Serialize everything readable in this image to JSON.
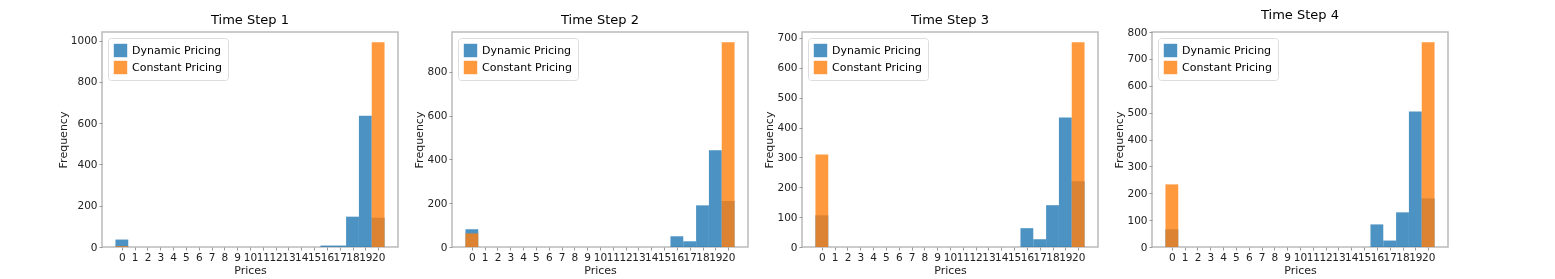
{
  "chart_data": [
    {
      "type": "histogram",
      "title": "Time Step 1",
      "xlabel": "Prices",
      "ylabel": "Frequency",
      "legend": "top left",
      "bins": [
        -0.5,
        0.5,
        1.5,
        2.5,
        3.5,
        4.5,
        5.5,
        6.5,
        7.5,
        8.5,
        9.5,
        10.5,
        11.5,
        12.5,
        13.5,
        14.5,
        15.5,
        16.5,
        17.5,
        18.5,
        19.5,
        20.5
      ],
      "xlim": [
        -1.55,
        21.55
      ],
      "xticks": [
        0,
        1,
        2,
        3,
        4,
        5,
        6,
        7,
        8,
        9,
        10,
        11,
        12,
        13,
        14,
        15,
        16,
        17,
        18,
        19,
        20
      ],
      "ylim": [
        0,
        1042
      ],
      "yticks": [
        0,
        200,
        400,
        600,
        800,
        1000
      ],
      "series": [
        {
          "name": "Dynamic Pricing",
          "color": "#1f77b4",
          "values": [
            36,
            0,
            0,
            0,
            0,
            0,
            0,
            0,
            0,
            0,
            0,
            0,
            0,
            0,
            0,
            0,
            7,
            7,
            147,
            636,
            142
          ]
        },
        {
          "name": "Constant Pricing",
          "color": "#ff7f0e",
          "values": [
            4,
            0,
            0,
            0,
            0,
            0,
            0,
            0,
            0,
            0,
            0,
            0,
            0,
            0,
            0,
            0,
            0,
            0,
            0,
            0,
            992
          ]
        }
      ]
    },
    {
      "type": "histogram",
      "title": "Time Step 2",
      "xlabel": "Prices",
      "ylabel": "Frequency",
      "legend": "top left",
      "bins": [
        -0.5,
        0.5,
        1.5,
        2.5,
        3.5,
        4.5,
        5.5,
        6.5,
        7.5,
        8.5,
        9.5,
        10.5,
        11.5,
        12.5,
        13.5,
        14.5,
        15.5,
        16.5,
        17.5,
        18.5,
        19.5,
        20.5
      ],
      "xlim": [
        -1.55,
        21.55
      ],
      "xticks": [
        0,
        1,
        2,
        3,
        4,
        5,
        6,
        7,
        8,
        9,
        10,
        11,
        12,
        13,
        14,
        15,
        16,
        17,
        18,
        19,
        20
      ],
      "ylim": [
        0,
        981
      ],
      "yticks": [
        0,
        200,
        400,
        600,
        800
      ],
      "series": [
        {
          "name": "Dynamic Pricing",
          "color": "#1f77b4",
          "values": [
            81,
            0,
            0,
            0,
            0,
            0,
            0,
            0,
            0,
            0,
            0,
            0,
            0,
            0,
            0,
            0,
            49,
            26,
            190,
            441,
            210
          ]
        },
        {
          "name": "Constant Pricing",
          "color": "#ff7f0e",
          "values": [
            62,
            0,
            0,
            0,
            0,
            0,
            0,
            0,
            0,
            0,
            0,
            0,
            0,
            0,
            0,
            0,
            0,
            0,
            0,
            0,
            934
          ]
        }
      ]
    },
    {
      "type": "histogram",
      "title": "Time Step 3",
      "xlabel": "Prices",
      "ylabel": "Frequency",
      "legend": "top left",
      "bins": [
        -0.5,
        0.5,
        1.5,
        2.5,
        3.5,
        4.5,
        5.5,
        6.5,
        7.5,
        8.5,
        9.5,
        10.5,
        11.5,
        12.5,
        13.5,
        14.5,
        15.5,
        16.5,
        17.5,
        18.5,
        19.5,
        20.5
      ],
      "xlim": [
        -1.55,
        21.55
      ],
      "xticks": [
        0,
        1,
        2,
        3,
        4,
        5,
        6,
        7,
        8,
        9,
        10,
        11,
        12,
        13,
        14,
        15,
        16,
        17,
        18,
        19,
        20
      ],
      "ylim": [
        0,
        720
      ],
      "yticks": [
        0,
        100,
        200,
        300,
        400,
        500,
        600,
        700
      ],
      "series": [
        {
          "name": "Dynamic Pricing",
          "color": "#1f77b4",
          "values": [
            106,
            0,
            0,
            0,
            0,
            0,
            0,
            0,
            0,
            0,
            0,
            0,
            0,
            0,
            0,
            0,
            63,
            26,
            140,
            434,
            220
          ]
        },
        {
          "name": "Constant Pricing",
          "color": "#ff7f0e",
          "values": [
            310,
            0,
            0,
            0,
            0,
            0,
            0,
            0,
            0,
            0,
            0,
            0,
            0,
            0,
            0,
            0,
            0,
            0,
            0,
            0,
            686
          ]
        }
      ]
    },
    {
      "type": "histogram",
      "title": "Time Step 4",
      "xlabel": "Prices",
      "ylabel": "Frequency",
      "legend": "top left",
      "bins": [
        -0.5,
        0.5,
        1.5,
        2.5,
        3.5,
        4.5,
        5.5,
        6.5,
        7.5,
        8.5,
        9.5,
        10.5,
        11.5,
        12.5,
        13.5,
        14.5,
        15.5,
        16.5,
        17.5,
        18.5,
        19.5,
        20.5
      ],
      "xlim": [
        -1.55,
        21.55
      ],
      "xticks": [
        0,
        1,
        2,
        3,
        4,
        5,
        6,
        7,
        8,
        9,
        10,
        11,
        12,
        13,
        14,
        15,
        16,
        17,
        18,
        19,
        20
      ],
      "ylim": [
        0,
        800
      ],
      "yticks": [
        0,
        100,
        200,
        300,
        400,
        500,
        600,
        700,
        800
      ],
      "series": [
        {
          "name": "Dynamic Pricing",
          "color": "#1f77b4",
          "values": [
            66,
            0,
            0,
            0,
            0,
            0,
            0,
            0,
            0,
            0,
            0,
            0,
            0,
            0,
            0,
            0,
            84,
            24,
            129,
            504,
            181
          ]
        },
        {
          "name": "Constant Pricing",
          "color": "#ff7f0e",
          "values": [
            233,
            0,
            0,
            0,
            0,
            0,
            0,
            0,
            0,
            0,
            0,
            0,
            0,
            0,
            0,
            0,
            0,
            0,
            0,
            0,
            762
          ]
        }
      ]
    }
  ]
}
